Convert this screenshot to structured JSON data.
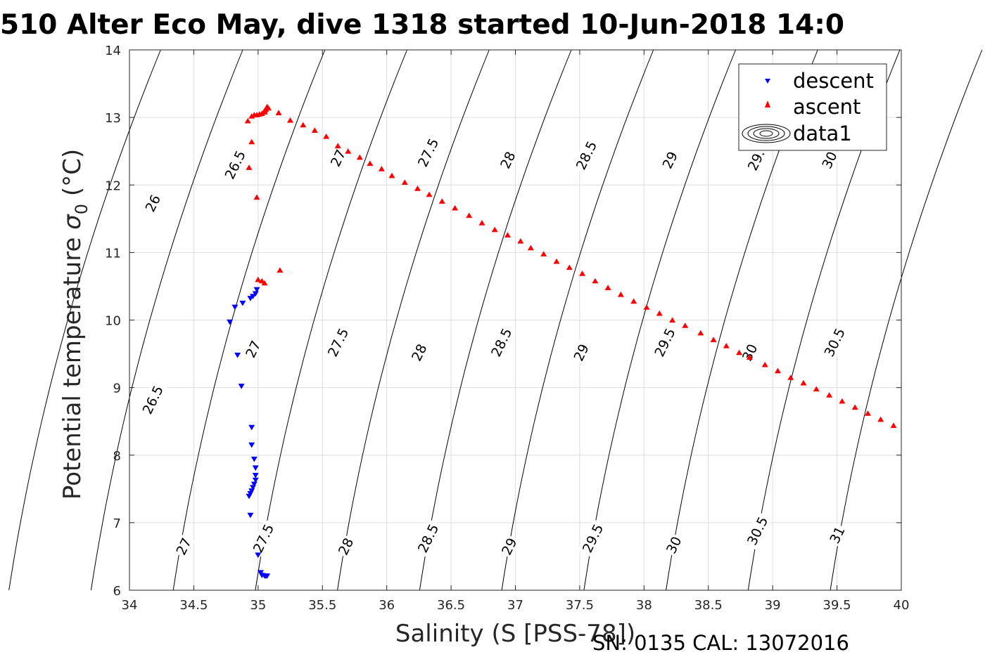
{
  "chart_data": {
    "type": "scatter",
    "title": "510 Alter Eco May, dive 1318 started 10-Jun-2018 14:0",
    "xlabel": "Salinity (S [PSS-78])",
    "ylabel_text": "Potential temperature ",
    "ylabel_symbol": "σ",
    "ylabel_sub": "0",
    "ylabel_unit": " (°C)",
    "xlim": [
      34,
      40
    ],
    "ylim": [
      6,
      14
    ],
    "xticks": [
      "34",
      "34.5",
      "35",
      "35.5",
      "36",
      "36.5",
      "37",
      "37.5",
      "38",
      "38.5",
      "39",
      "39.5",
      "40"
    ],
    "yticks": [
      "6",
      "7",
      "8",
      "9",
      "10",
      "11",
      "12",
      "13",
      "14"
    ],
    "grid": true,
    "legend_position": "top-right",
    "legend": [
      "descent",
      "ascent",
      "data1"
    ],
    "colors": {
      "descent": "#0000ff",
      "ascent": "#ff0000",
      "contour": "#000000",
      "grid": "#dddddd"
    },
    "series": [
      {
        "name": "descent",
        "marker": "triangle-down",
        "x": [
          34.78,
          34.82,
          34.88,
          34.94,
          34.96,
          34.98,
          34.99,
          34.84,
          34.87,
          34.95,
          34.95,
          34.97,
          34.98,
          34.98,
          34.98,
          34.97,
          34.96,
          34.95,
          34.94,
          34.93,
          34.94,
          35.0,
          35.02,
          35.03,
          35.05,
          35.06,
          35.07
        ],
        "y": [
          9.97,
          10.19,
          10.25,
          10.32,
          10.35,
          10.39,
          10.45,
          9.48,
          9.02,
          8.41,
          8.15,
          7.94,
          7.81,
          7.7,
          7.63,
          7.57,
          7.52,
          7.47,
          7.43,
          7.39,
          7.11,
          6.52,
          6.26,
          6.22,
          6.21,
          6.21,
          6.21
        ]
      },
      {
        "name": "ascent",
        "marker": "triangle-up",
        "x": [
          34.92,
          34.95,
          34.97,
          34.99,
          35.01,
          35.03,
          35.05,
          35.06,
          35.07,
          35.08,
          35.05,
          35.16,
          35.25,
          35.35,
          35.44,
          35.53,
          35.62,
          35.7,
          35.79,
          35.87,
          35.96,
          36.04,
          36.14,
          36.24,
          36.33,
          36.43,
          36.53,
          36.64,
          36.74,
          36.84,
          36.94,
          37.04,
          37.12,
          37.22,
          37.32,
          37.42,
          37.52,
          37.62,
          37.72,
          37.82,
          37.92,
          38.02,
          38.12,
          38.22,
          38.32,
          38.44,
          38.54,
          38.64,
          38.74,
          38.82,
          38.94,
          39.04,
          39.14,
          39.24,
          39.34,
          39.44,
          39.54,
          39.64,
          39.74,
          39.84,
          39.94,
          34.93,
          34.95,
          34.99,
          35.0,
          35.03,
          35.05,
          35.17
        ],
        "y": [
          12.95,
          13.02,
          13.04,
          13.04,
          13.05,
          13.06,
          13.08,
          13.12,
          13.16,
          13.14,
          13.1,
          13.07,
          12.96,
          12.89,
          12.81,
          12.72,
          12.58,
          12.5,
          12.41,
          12.32,
          12.24,
          12.14,
          12.04,
          11.95,
          11.86,
          11.76,
          11.66,
          11.55,
          11.44,
          11.34,
          11.26,
          11.17,
          11.07,
          10.98,
          10.87,
          10.78,
          10.69,
          10.58,
          10.48,
          10.38,
          10.28,
          10.19,
          10.1,
          10.0,
          9.92,
          9.81,
          9.71,
          9.62,
          9.52,
          9.45,
          9.34,
          9.25,
          9.15,
          9.07,
          8.98,
          8.89,
          8.8,
          8.71,
          8.62,
          8.53,
          8.44,
          12.26,
          12.64,
          11.82,
          10.6,
          10.58,
          10.55,
          10.74
        ]
      }
    ],
    "contours": {
      "levels": [
        26,
        26.5,
        27,
        27.5,
        28,
        28.5,
        29,
        29.5,
        30,
        30.5,
        31
      ],
      "labels": [
        {
          "text": "26",
          "x": 34.18,
          "y": 11.73
        },
        {
          "text": "26.5",
          "x": 34.82,
          "y": 12.3
        },
        {
          "text": "27",
          "x": 35.62,
          "y": 12.4
        },
        {
          "text": "27.5",
          "x": 36.32,
          "y": 12.48
        },
        {
          "text": "28",
          "x": 36.94,
          "y": 12.37
        },
        {
          "text": "28.5",
          "x": 37.55,
          "y": 12.44
        },
        {
          "text": "29",
          "x": 38.2,
          "y": 12.37
        },
        {
          "text": "29.",
          "x": 38.87,
          "y": 12.37
        },
        {
          "text": "30",
          "x": 39.44,
          "y": 12.37
        },
        {
          "text": "26.5",
          "x": 34.18,
          "y": 8.82
        },
        {
          "text": "27",
          "x": 34.96,
          "y": 9.57
        },
        {
          "text": "27.5",
          "x": 35.62,
          "y": 9.67
        },
        {
          "text": "28",
          "x": 36.25,
          "y": 9.52
        },
        {
          "text": "28.5",
          "x": 36.89,
          "y": 9.67
        },
        {
          "text": "29",
          "x": 37.51,
          "y": 9.52
        },
        {
          "text": "29.5",
          "x": 38.16,
          "y": 9.67
        },
        {
          "text": "30",
          "x": 38.82,
          "y": 9.52
        },
        {
          "text": "30.5",
          "x": 39.48,
          "y": 9.67
        },
        {
          "text": "27",
          "x": 34.42,
          "y": 6.65
        },
        {
          "text": "27.5",
          "x": 35.04,
          "y": 6.77
        },
        {
          "text": "28",
          "x": 35.68,
          "y": 6.65
        },
        {
          "text": "28.5",
          "x": 36.32,
          "y": 6.77
        },
        {
          "text": "29",
          "x": 36.95,
          "y": 6.65
        },
        {
          "text": "29.5",
          "x": 37.6,
          "y": 6.77
        },
        {
          "text": "30",
          "x": 38.23,
          "y": 6.67
        },
        {
          "text": "30.5",
          "x": 38.88,
          "y": 6.88
        },
        {
          "text": "31",
          "x": 39.5,
          "y": 6.82
        }
      ]
    }
  },
  "footer": "SN: 0135  CAL: 13072016"
}
